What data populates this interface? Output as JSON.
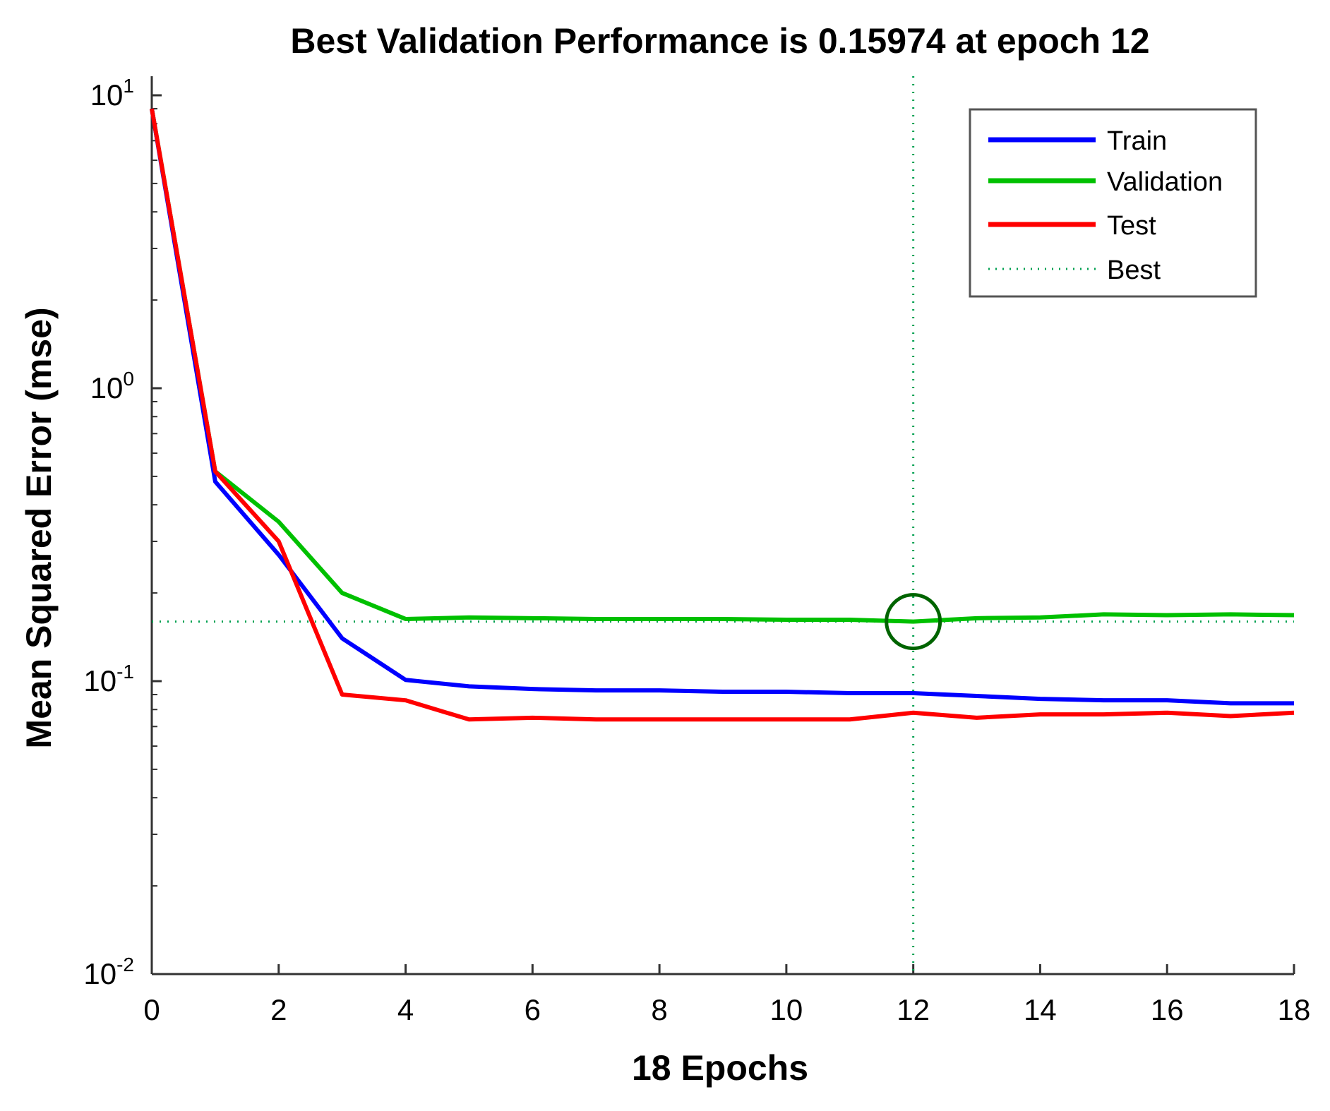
{
  "chart_data": {
    "type": "line",
    "title": "Best Validation Performance is 0.15974 at epoch 12",
    "xlabel": "18 Epochs",
    "ylabel": "Mean Squared Error  (mse)",
    "yscale": "log",
    "xlim": [
      0,
      18
    ],
    "ylim": [
      0.01,
      10
    ],
    "x_ticks": [
      0,
      2,
      4,
      6,
      8,
      10,
      12,
      14,
      16,
      18
    ],
    "x_tick_labels": [
      "0",
      "2",
      "4",
      "6",
      "8",
      "10",
      "12",
      "14",
      "16",
      "18"
    ],
    "y_ticks": [
      {
        "value": 10,
        "base": "10",
        "exponent": "1"
      },
      {
        "value": 1,
        "base": "10",
        "exponent": "0"
      },
      {
        "value": 0.1,
        "base": "10",
        "exponent": "-1"
      },
      {
        "value": 0.01,
        "base": "10",
        "exponent": "-2"
      }
    ],
    "x": [
      0,
      1,
      2,
      3,
      4,
      5,
      6,
      7,
      8,
      9,
      10,
      11,
      12,
      13,
      14,
      15,
      16,
      17,
      18
    ],
    "series": [
      {
        "name": "Train",
        "color": "#0000ff",
        "values": [
          9.0,
          0.48,
          0.27,
          0.14,
          0.101,
          0.096,
          0.094,
          0.093,
          0.093,
          0.092,
          0.092,
          0.091,
          0.091,
          0.089,
          0.087,
          0.086,
          0.086,
          0.084,
          0.084
        ]
      },
      {
        "name": "Validation",
        "color": "#00c000",
        "values": [
          9.0,
          0.52,
          0.35,
          0.2,
          0.163,
          0.165,
          0.164,
          0.163,
          0.163,
          0.163,
          0.162,
          0.162,
          0.15974,
          0.164,
          0.165,
          0.169,
          0.168,
          0.169,
          0.168
        ]
      },
      {
        "name": "Test",
        "color": "#ff0000",
        "values": [
          9.0,
          0.52,
          0.3,
          0.09,
          0.086,
          0.074,
          0.075,
          0.074,
          0.074,
          0.074,
          0.074,
          0.074,
          0.078,
          0.075,
          0.077,
          0.077,
          0.078,
          0.076,
          0.078
        ]
      }
    ],
    "best": {
      "epoch": 12,
      "value": 0.15974,
      "label": "Best",
      "color": "#00a050",
      "marker_color": "#006400"
    },
    "legend": {
      "position": "top-right",
      "entries": [
        "Train",
        "Validation",
        "Test",
        "Best"
      ]
    },
    "grid": false
  }
}
